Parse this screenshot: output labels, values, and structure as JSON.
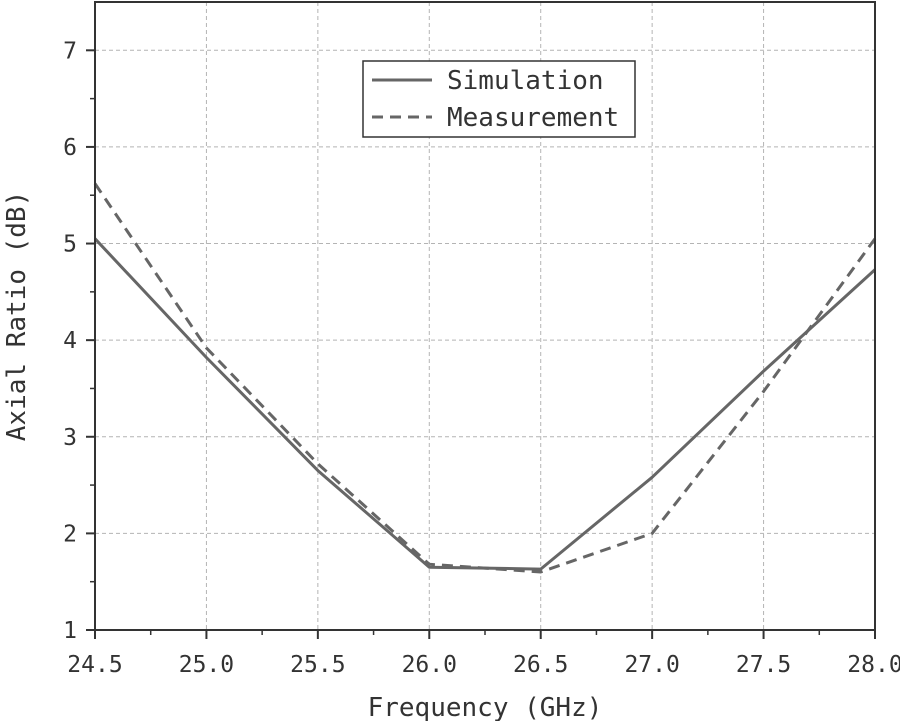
{
  "chart_data": {
    "type": "line",
    "xlabel": "Frequency (GHz)",
    "ylabel": "Axial Ratio (dB)",
    "xlim": [
      24.5,
      28.0
    ],
    "ylim": [
      1,
      7.5
    ],
    "xticks": [
      24.5,
      25.0,
      25.5,
      26.0,
      26.5,
      27.0,
      27.5,
      28.0
    ],
    "xtick_labels": [
      "24.5",
      "25.0",
      "25.5",
      "26.0",
      "26.5",
      "27.0",
      "27.5",
      "28.0"
    ],
    "yticks": [
      1,
      2,
      3,
      4,
      5,
      6,
      7
    ],
    "ytick_labels": [
      "1",
      "2",
      "3",
      "4",
      "5",
      "6",
      "7"
    ],
    "grid": true,
    "legend_position": "top-center",
    "series": [
      {
        "name": "Simulation",
        "style": "solid",
        "color": "#666666",
        "x": [
          24.5,
          25.0,
          25.5,
          26.0,
          26.5,
          27.0,
          27.5,
          28.0
        ],
        "y": [
          5.05,
          3.82,
          2.65,
          1.65,
          1.63,
          2.58,
          3.68,
          4.73
        ]
      },
      {
        "name": "Measurement",
        "style": "dashed",
        "color": "#666666",
        "x": [
          24.5,
          25.0,
          25.5,
          26.0,
          26.5,
          27.0,
          27.5,
          28.0
        ],
        "y": [
          5.62,
          3.92,
          2.72,
          1.68,
          1.6,
          2.0,
          3.47,
          5.05
        ]
      }
    ]
  }
}
